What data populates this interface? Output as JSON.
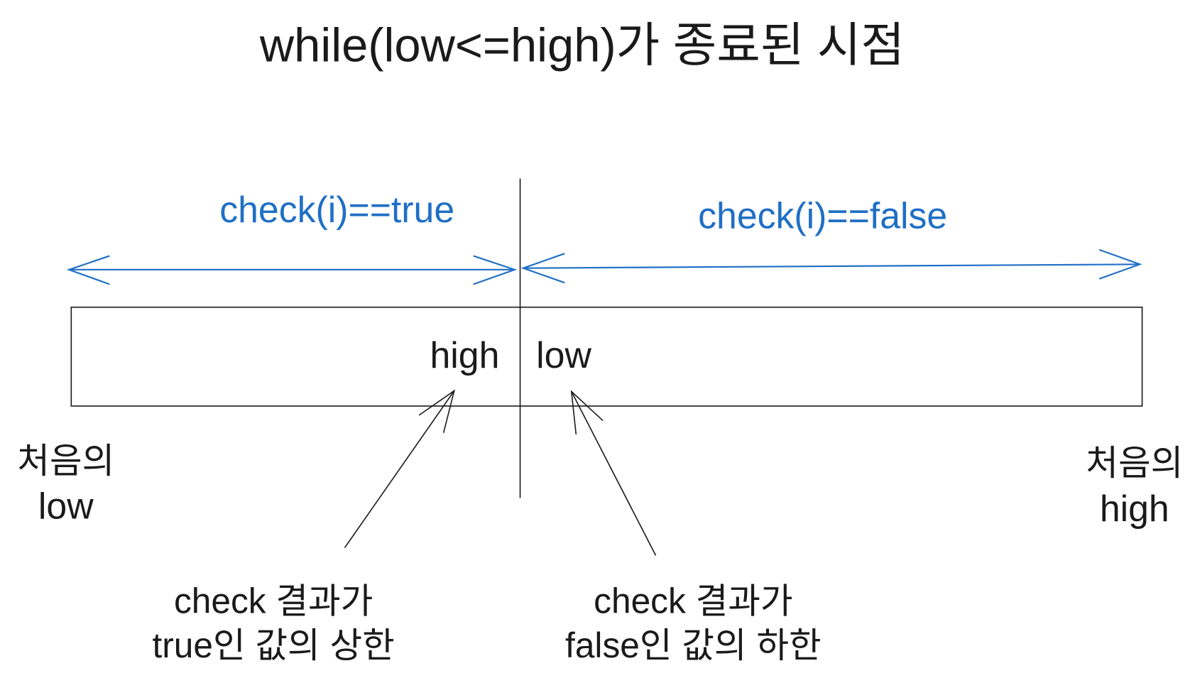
{
  "title": "while(low<=high)가 종료된 시점",
  "regions": {
    "true_label": "check(i)==true",
    "false_label": "check(i)==false"
  },
  "box": {
    "high_label": "high",
    "low_label": "low"
  },
  "ends": {
    "left_line1": "처음의",
    "left_line2": "low",
    "right_line1": "처음의",
    "right_line2": "high"
  },
  "annotations": {
    "left_line1": "check 결과가",
    "left_line2": "true인 값의 상한",
    "right_line1": "check 결과가",
    "right_line2": "false인 값의 하한"
  },
  "colors": {
    "accent": "#1f6fc5",
    "ink": "#1a1a1a"
  }
}
